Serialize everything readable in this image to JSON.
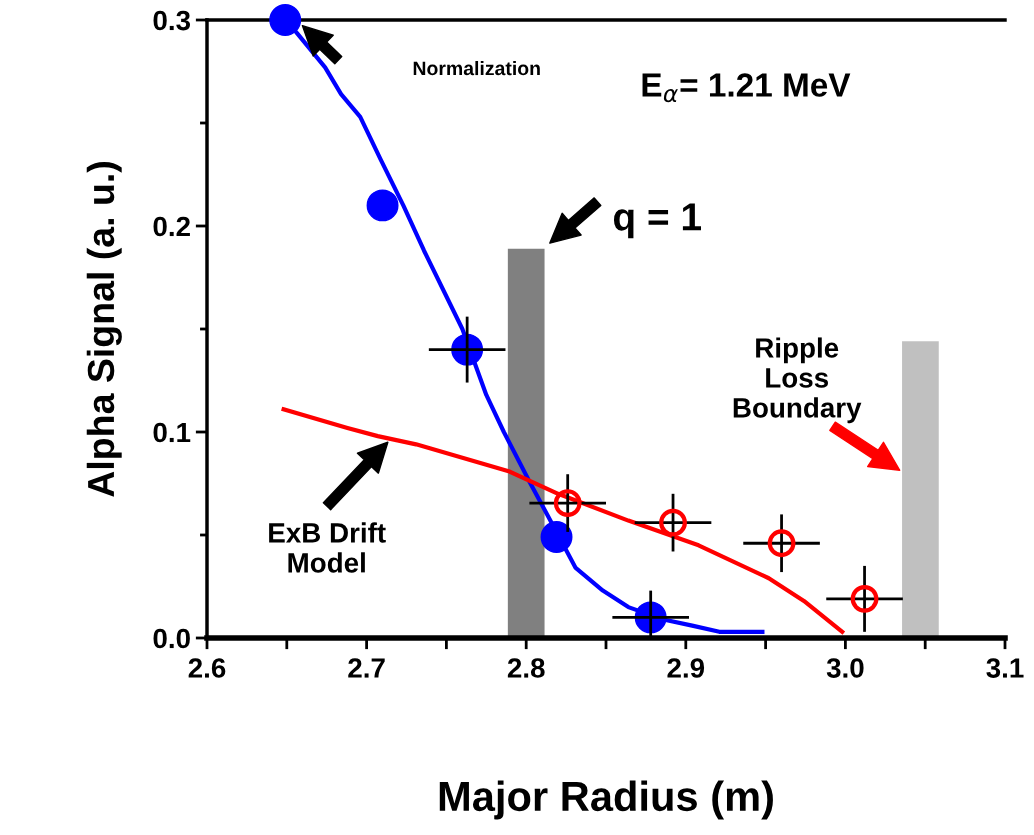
{
  "chart_data": {
    "type": "line",
    "xlabel": "Major Radius (m)",
    "ylabel": "Alpha Signal (a. u.)",
    "xlim": [
      2.6,
      3.1
    ],
    "ylim": [
      0,
      0.3
    ],
    "xticks": [
      {
        "value": 2.6,
        "label": "2.6"
      },
      {
        "value": 2.65,
        "label": null
      },
      {
        "value": 2.7,
        "label": "2.7"
      },
      {
        "value": 2.75,
        "label": null
      },
      {
        "value": 2.8,
        "label": "2.8"
      },
      {
        "value": 2.85,
        "label": null
      },
      {
        "value": 2.9,
        "label": "2.9"
      },
      {
        "value": 2.95,
        "label": null
      },
      {
        "value": 3.0,
        "label": "3.0"
      },
      {
        "value": 3.05,
        "label": null
      },
      {
        "value": 3.1,
        "label": "3.1"
      }
    ],
    "yticks": [
      {
        "value": 0,
        "label": "0.0"
      },
      {
        "value": 0.05,
        "label": null
      },
      {
        "value": 0.1,
        "label": "0.1"
      },
      {
        "value": 0.15,
        "label": null
      },
      {
        "value": 0.2,
        "label": "0.2"
      },
      {
        "value": 0.25,
        "label": null
      },
      {
        "value": 0.3,
        "label": "0.3"
      }
    ],
    "grid": false,
    "legend": false,
    "series": [
      {
        "type": "bar",
        "x": [
          2.8,
          3.047
        ],
        "values": [
          0.189,
          0.144
        ],
        "colors": [
          "#808080",
          "#c0c0c0"
        ]
      },
      {
        "color": "#0000ff",
        "marker": "none",
        "x": [
          2.649,
          2.656,
          2.674,
          2.684,
          2.696,
          2.709,
          2.723,
          2.736,
          2.76,
          2.775,
          2.786,
          2.802,
          2.82,
          2.831,
          2.848,
          2.864,
          2.886,
          2.904,
          2.921,
          2.948
        ],
        "values": [
          0.3,
          0.294,
          0.277,
          0.264,
          0.253,
          0.232,
          0.21,
          0.188,
          0.15,
          0.118,
          0.1,
          0.076,
          0.05,
          0.034,
          0.023,
          0.015,
          0.009,
          0.006,
          0.003,
          0.003
        ]
      },
      {
        "color": "#ff0000",
        "marker": "none",
        "x": [
          2.648,
          2.688,
          2.707,
          2.731,
          2.789,
          2.82,
          2.864,
          2.908,
          2.952,
          2.974,
          2.998
        ],
        "values": [
          0.111,
          0.102,
          0.098,
          0.094,
          0.081,
          0.07,
          0.057,
          0.045,
          0.029,
          0.018,
          0.003
        ]
      },
      {
        "type": "scatter",
        "color": "#0000ff",
        "marker": "circle",
        "x": [
          2.649,
          2.71,
          2.763,
          2.819,
          2.878
        ],
        "values": [
          0.3,
          0.21,
          0.14,
          0.049,
          0.01
        ],
        "errors": [
          null,
          null,
          0.016,
          null,
          0.013
        ],
        "xerrors": [
          null,
          null,
          0.024,
          null,
          0.024
        ]
      },
      {
        "type": "scatter",
        "color": "#ff0000",
        "marker": "circle",
        "x": [
          2.826,
          2.892,
          2.96,
          3.012
        ],
        "values": [
          0.0655,
          0.056,
          0.046,
          0.019
        ],
        "errors": [
          0.014,
          0.014,
          0.014,
          0.016
        ],
        "xerrors": [
          0.024,
          0.024,
          0.024,
          0.024
        ]
      }
    ],
    "annotations": [
      "Normalization",
      "E$_{α}$= 1.21 MeV",
      "q = 1",
      "Ripple\nLoss\nBoundary",
      "ExB Drift\nModel"
    ]
  }
}
